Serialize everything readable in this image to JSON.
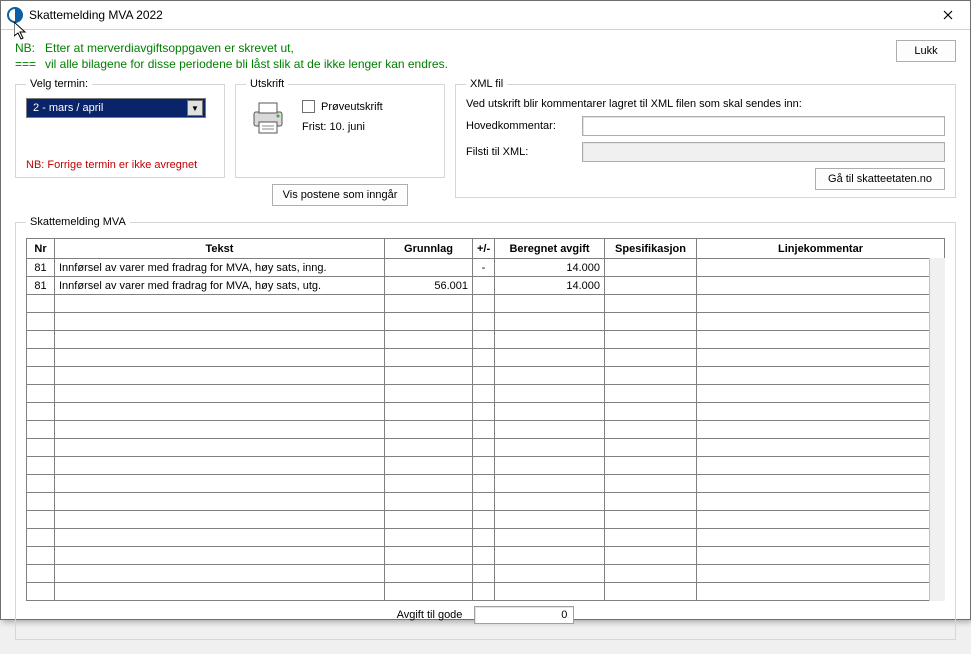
{
  "window": {
    "title": "Skattemelding MVA 2022"
  },
  "note": {
    "prefix": "NB:",
    "line1": "Etter at merverdiavgiftsoppgaven er skrevet ut,",
    "prefix2": "===",
    "line2": "vil alle bilagene for disse periodene bli låst slik at de ikke lenger kan endres."
  },
  "buttons": {
    "lukk": "Lukk",
    "viser": "Vis postene som inngår",
    "gaTil": "Gå til skatteetaten.no"
  },
  "termin": {
    "legend": "Velg termin:",
    "selected": "2 - mars / april",
    "warn": "NB: Forrige termin er ikke avregnet"
  },
  "utskrift": {
    "legend": "Utskrift",
    "check": "Prøveutskrift",
    "frist": "Frist: 10. juni"
  },
  "xml": {
    "legend": "XML fil",
    "intro": "Ved utskrift blir kommentarer lagret til XML filen som skal sendes inn:",
    "hovedLabel": "Hovedkommentar:",
    "filstiLabel": "Filsti til XML:",
    "hovedValue": "",
    "filstiValue": ""
  },
  "table": {
    "legend": "Skattemelding MVA",
    "columns": {
      "nr": "Nr",
      "tekst": "Tekst",
      "grunnlag": "Grunnlag",
      "pm": "+/-",
      "avgift": "Beregnet avgift",
      "spes": "Spesifikasjon",
      "komm": "Linjekommentar"
    },
    "rows": [
      {
        "nr": "81",
        "tekst": "Innførsel av varer med fradrag for MVA, høy sats, inng.",
        "grunnlag": "",
        "pm": "-",
        "avgift": "14.000",
        "spes": "",
        "komm": ""
      },
      {
        "nr": "81",
        "tekst": "Innførsel av varer med fradrag for MVA, høy sats, utg.",
        "grunnlag": "56.001",
        "pm": "",
        "avgift": "14.000",
        "spes": "",
        "komm": ""
      }
    ],
    "emptyRows": 17
  },
  "footer": {
    "label": "Avgift til gode",
    "value": "0"
  },
  "colors": {
    "noteGreen": "#008000",
    "warnRed": "#c00000",
    "selectBg": "#0a246a"
  }
}
